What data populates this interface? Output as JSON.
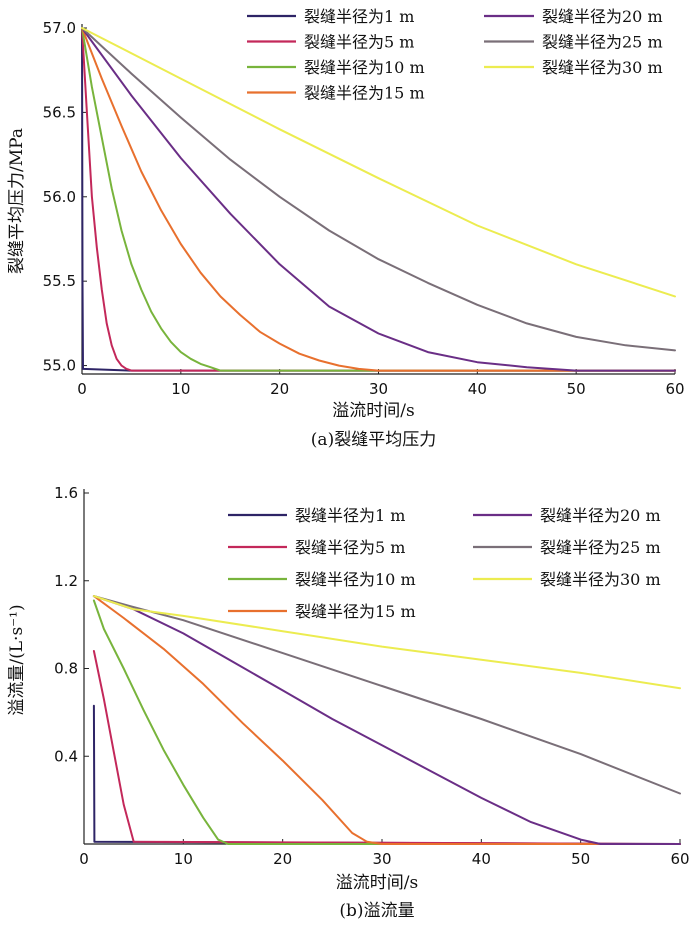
{
  "chart_data": [
    {
      "type": "line",
      "caption": "(a)裂缝平均压力",
      "xlabel": "溢流时间/s",
      "ylabel": "裂缝平均压力/MPa",
      "xlim": [
        0,
        60
      ],
      "ylim": [
        54.95,
        57.0
      ],
      "x_ticks": [
        "0",
        "10",
        "20",
        "30",
        "40",
        "50",
        "60"
      ],
      "y_ticks": [
        "55.0",
        "55.5",
        "56.0",
        "56.5",
        "57.0"
      ],
      "legend_placement": "top-right",
      "series": [
        {
          "name": "裂缝半径为1 m",
          "color": "#2e2466",
          "points": [
            [
              0,
              57.0
            ],
            [
              0.05,
              55.5
            ],
            [
              0.1,
              54.98
            ],
            [
              5,
              54.97
            ],
            [
              60,
              54.97
            ]
          ]
        },
        {
          "name": "裂缝半径为5 m",
          "color": "#c3285a",
          "points": [
            [
              0,
              57.0
            ],
            [
              0.5,
              56.5
            ],
            [
              1,
              56.0
            ],
            [
              1.5,
              55.7
            ],
            [
              2,
              55.45
            ],
            [
              2.5,
              55.25
            ],
            [
              3,
              55.12
            ],
            [
              3.5,
              55.04
            ],
            [
              4,
              55.0
            ],
            [
              4.5,
              54.98
            ],
            [
              5,
              54.97
            ],
            [
              60,
              54.97
            ]
          ]
        },
        {
          "name": "裂缝半径为10 m",
          "color": "#78b43c",
          "points": [
            [
              0,
              57.0
            ],
            [
              1,
              56.65
            ],
            [
              2,
              56.35
            ],
            [
              3,
              56.05
            ],
            [
              4,
              55.8
            ],
            [
              5,
              55.6
            ],
            [
              6,
              55.45
            ],
            [
              7,
              55.32
            ],
            [
              8,
              55.22
            ],
            [
              9,
              55.14
            ],
            [
              10,
              55.08
            ],
            [
              11,
              55.04
            ],
            [
              12,
              55.01
            ],
            [
              13,
              54.99
            ],
            [
              14,
              54.97
            ],
            [
              60,
              54.97
            ]
          ]
        },
        {
          "name": "裂缝半径为15 m",
          "color": "#e8702e",
          "points": [
            [
              0,
              57.0
            ],
            [
              2,
              56.7
            ],
            [
              4,
              56.42
            ],
            [
              6,
              56.15
            ],
            [
              8,
              55.92
            ],
            [
              10,
              55.72
            ],
            [
              12,
              55.55
            ],
            [
              14,
              55.41
            ],
            [
              16,
              55.3
            ],
            [
              18,
              55.2
            ],
            [
              20,
              55.13
            ],
            [
              22,
              55.07
            ],
            [
              24,
              55.03
            ],
            [
              26,
              55.0
            ],
            [
              28,
              54.98
            ],
            [
              30,
              54.97
            ],
            [
              60,
              54.97
            ]
          ]
        },
        {
          "name": "裂缝半径为20 m",
          "color": "#6a2e86",
          "points": [
            [
              0,
              57.0
            ],
            [
              5,
              56.6
            ],
            [
              10,
              56.23
            ],
            [
              15,
              55.9
            ],
            [
              20,
              55.6
            ],
            [
              25,
              55.35
            ],
            [
              30,
              55.19
            ],
            [
              35,
              55.08
            ],
            [
              40,
              55.02
            ],
            [
              45,
              54.99
            ],
            [
              50,
              54.97
            ],
            [
              60,
              54.97
            ]
          ]
        },
        {
          "name": "裂缝半径为25 m",
          "color": "#7a6f78",
          "points": [
            [
              0,
              57.0
            ],
            [
              5,
              56.73
            ],
            [
              10,
              56.47
            ],
            [
              15,
              56.22
            ],
            [
              20,
              56.0
            ],
            [
              25,
              55.8
            ],
            [
              30,
              55.63
            ],
            [
              35,
              55.49
            ],
            [
              40,
              55.36
            ],
            [
              45,
              55.25
            ],
            [
              50,
              55.17
            ],
            [
              55,
              55.12
            ],
            [
              60,
              55.09
            ]
          ]
        },
        {
          "name": "裂缝半径为30 m",
          "color": "#ecec50",
          "points": [
            [
              0,
              57.0
            ],
            [
              10,
              56.7
            ],
            [
              20,
              56.4
            ],
            [
              30,
              56.11
            ],
            [
              40,
              55.83
            ],
            [
              50,
              55.6
            ],
            [
              60,
              55.41
            ]
          ]
        }
      ]
    },
    {
      "type": "line",
      "caption": "(b)溢流量",
      "xlabel": "溢流时间/s",
      "ylabel": "溢流量/(L·s⁻¹)",
      "xlim": [
        0,
        60
      ],
      "ylim": [
        0,
        1.6
      ],
      "x_ticks": [
        "0",
        "10",
        "20",
        "30",
        "40",
        "50",
        "60"
      ],
      "y_ticks": [
        "0.4",
        "0.8",
        "1.2",
        "1.6"
      ],
      "legend_placement": "top-right",
      "series": [
        {
          "name": "裂缝半径为1 m",
          "color": "#2e2466",
          "points": [
            [
              1,
              0.63
            ],
            [
              1.05,
              0.01
            ],
            [
              60,
              0.0
            ]
          ]
        },
        {
          "name": "裂缝半径为5 m",
          "color": "#c3285a",
          "points": [
            [
              1,
              0.88
            ],
            [
              2,
              0.66
            ],
            [
              3,
              0.42
            ],
            [
              4,
              0.18
            ],
            [
              5,
              0.01
            ],
            [
              60,
              0.0
            ]
          ]
        },
        {
          "name": "裂缝半径为10 m",
          "color": "#78b43c",
          "points": [
            [
              1,
              1.11
            ],
            [
              2,
              0.98
            ],
            [
              4,
              0.8
            ],
            [
              6,
              0.61
            ],
            [
              8,
              0.43
            ],
            [
              10,
              0.27
            ],
            [
              12,
              0.12
            ],
            [
              13.5,
              0.02
            ],
            [
              14.5,
              0.0
            ],
            [
              60,
              0.0
            ]
          ]
        },
        {
          "name": "裂缝半径为15 m",
          "color": "#e8702e",
          "points": [
            [
              1,
              1.13
            ],
            [
              4,
              1.03
            ],
            [
              8,
              0.89
            ],
            [
              12,
              0.73
            ],
            [
              16,
              0.55
            ],
            [
              20,
              0.38
            ],
            [
              24,
              0.2
            ],
            [
              27,
              0.05
            ],
            [
              28.5,
              0.01
            ],
            [
              30,
              0.0
            ],
            [
              60,
              0.0
            ]
          ]
        },
        {
          "name": "裂缝半径为20 m",
          "color": "#6a2e86",
          "points": [
            [
              1,
              1.13
            ],
            [
              5,
              1.07
            ],
            [
              10,
              0.96
            ],
            [
              15,
              0.83
            ],
            [
              20,
              0.7
            ],
            [
              25,
              0.57
            ],
            [
              30,
              0.45
            ],
            [
              35,
              0.33
            ],
            [
              40,
              0.21
            ],
            [
              45,
              0.1
            ],
            [
              50,
              0.02
            ],
            [
              52,
              0.0
            ],
            [
              60,
              0.0
            ]
          ]
        },
        {
          "name": "裂缝半径为25 m",
          "color": "#7a6f78",
          "points": [
            [
              1,
              1.13
            ],
            [
              5,
              1.08
            ],
            [
              10,
              1.02
            ],
            [
              20,
              0.87
            ],
            [
              30,
              0.72
            ],
            [
              40,
              0.57
            ],
            [
              50,
              0.41
            ],
            [
              60,
              0.23
            ]
          ]
        },
        {
          "name": "裂缝半径为30 m",
          "color": "#ecec50",
          "points": [
            [
              1,
              1.13
            ],
            [
              5,
              1.07
            ],
            [
              10,
              1.04
            ],
            [
              20,
              0.97
            ],
            [
              30,
              0.9
            ],
            [
              40,
              0.84
            ],
            [
              50,
              0.78
            ],
            [
              60,
              0.71
            ]
          ]
        }
      ]
    }
  ]
}
